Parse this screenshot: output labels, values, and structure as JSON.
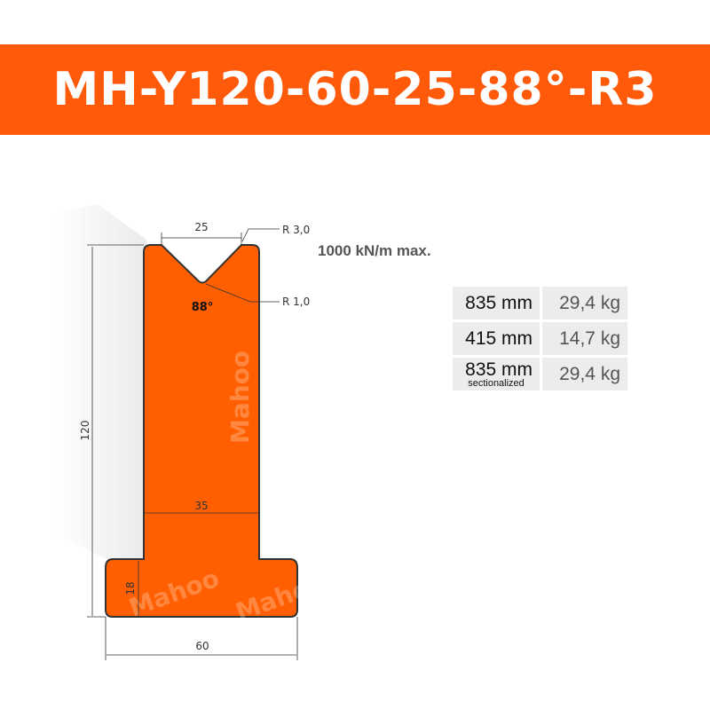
{
  "title": "MH-Y120-60-25-88°-R3",
  "colors": {
    "banner": "#ff5a0a",
    "profile": "#ff5f00",
    "outline": "#333333",
    "table_bg": "#ececec"
  },
  "diagram": {
    "dims": {
      "v_width": "25",
      "top_radius": "R 3,0",
      "bottom_radius": "R 1,0",
      "angle": "88°",
      "height": "120",
      "stem_width": "35",
      "base_height": "18",
      "base_width": "60"
    },
    "load": "1000 kN/m max.",
    "watermark": "Mahoo"
  },
  "table": [
    {
      "length": "835 mm",
      "weight": "29,4 kg"
    },
    {
      "length": "415 mm",
      "weight": "14,7 kg"
    },
    {
      "length": "835 mm",
      "note": "sectionalized",
      "weight": "29,4 kg"
    }
  ]
}
